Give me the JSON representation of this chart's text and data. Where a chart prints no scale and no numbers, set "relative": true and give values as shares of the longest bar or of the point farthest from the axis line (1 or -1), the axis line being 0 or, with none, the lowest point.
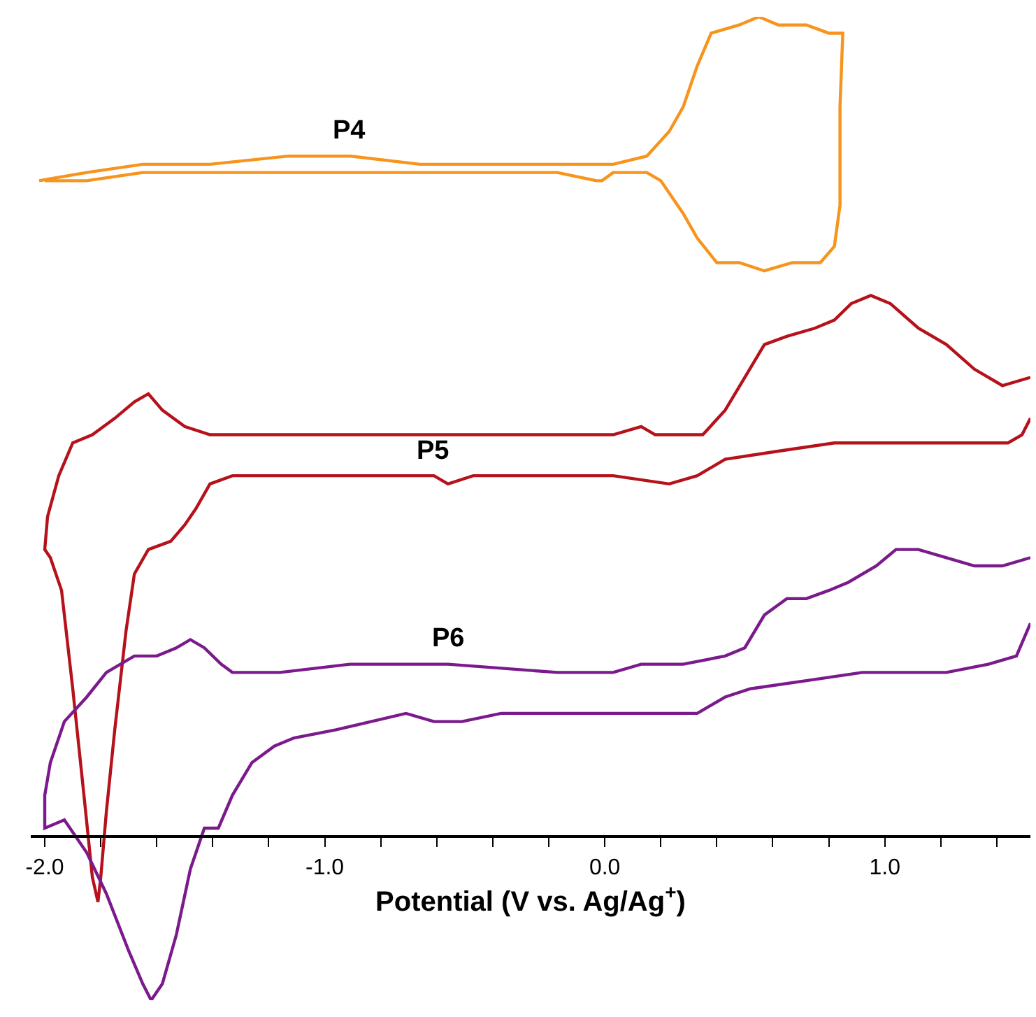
{
  "chart_data": {
    "type": "line",
    "relative": true,
    "xlabel": "Potential (V vs. Ag/Ag$^{+}$)",
    "xlim": [
      -2.05,
      1.52
    ],
    "xticks": [
      {
        "value": -2.0,
        "label": "-2.0"
      },
      {
        "value": -1.8,
        "label": null
      },
      {
        "value": -1.6,
        "label": null
      },
      {
        "value": -1.4,
        "label": null
      },
      {
        "value": -1.2,
        "label": null
      },
      {
        "value": -1.0,
        "label": "-1.0"
      },
      {
        "value": -0.8,
        "label": null
      },
      {
        "value": -0.6,
        "label": null
      },
      {
        "value": -0.4,
        "label": null
      },
      {
        "value": -0.2,
        "label": null
      },
      {
        "value": 0.0,
        "label": "0.0"
      },
      {
        "value": 0.2,
        "label": null
      },
      {
        "value": 0.4,
        "label": null
      },
      {
        "value": 0.6,
        "label": null
      },
      {
        "value": 0.8,
        "label": null
      },
      {
        "value": 1.0,
        "label": "1.0"
      },
      {
        "value": 1.2,
        "label": null
      },
      {
        "value": 1.4,
        "label": null
      }
    ],
    "legend": false,
    "marker": "none",
    "line_style": "solid",
    "series": [
      {
        "name": "P4",
        "color": "#f7941d",
        "x": [
          -2.02,
          -1.85,
          -1.65,
          -1.41,
          -1.13,
          -0.91,
          -0.66,
          -0.42,
          -0.17,
          0.03,
          0.15,
          0.23,
          0.28,
          0.33,
          0.38,
          0.48,
          0.55,
          0.62,
          0.72,
          0.8,
          0.82,
          0.85,
          0.84,
          0.84,
          0.82,
          0.77,
          0.67,
          0.57,
          0.48,
          0.4,
          0.33,
          0.28,
          0.2,
          0.15,
          0.1,
          0.03,
          -0.01,
          -0.03,
          -0.17,
          -0.66,
          -1.16,
          -1.41,
          -1.65,
          -1.85,
          -2.0
        ],
        "values": [
          0.8,
          0.81,
          0.82,
          0.82,
          0.83,
          0.83,
          0.82,
          0.82,
          0.82,
          0.82,
          0.83,
          0.86,
          0.89,
          0.94,
          0.98,
          0.99,
          1.0,
          0.99,
          0.99,
          0.98,
          0.98,
          0.98,
          0.89,
          0.77,
          0.72,
          0.7,
          0.7,
          0.69,
          0.7,
          0.7,
          0.73,
          0.76,
          0.8,
          0.81,
          0.81,
          0.81,
          0.8,
          0.8,
          0.81,
          0.81,
          0.81,
          0.81,
          0.81,
          0.8,
          0.8
        ]
      },
      {
        "name": "P5",
        "color": "#b5121b",
        "x": [
          1.52,
          1.42,
          1.32,
          1.22,
          1.12,
          1.02,
          0.95,
          0.88,
          0.82,
          0.75,
          0.65,
          0.57,
          0.5,
          0.43,
          0.35,
          0.28,
          0.18,
          0.13,
          0.03,
          -0.17,
          -0.66,
          -0.91,
          -1.01,
          -1.16,
          -1.41,
          -1.5,
          -1.58,
          -1.63,
          -1.68,
          -1.75,
          -1.83,
          -1.9,
          -1.95,
          -1.99,
          -2.0,
          -1.98,
          -1.94,
          -1.9,
          -1.86,
          -1.83,
          -1.81,
          -1.8,
          -1.78,
          -1.75,
          -1.71,
          -1.68,
          -1.63,
          -1.55,
          -1.5,
          -1.46,
          -1.41,
          -1.33,
          -1.16,
          -0.91,
          -0.76,
          -0.61,
          -0.56,
          -0.47,
          -0.17,
          0.03,
          0.23,
          0.33,
          0.43,
          0.62,
          0.82,
          1.32,
          1.44,
          1.49,
          1.52
        ],
        "values": [
          0.56,
          0.55,
          0.57,
          0.6,
          0.62,
          0.65,
          0.66,
          0.65,
          0.63,
          0.62,
          0.61,
          0.6,
          0.56,
          0.52,
          0.49,
          0.49,
          0.49,
          0.5,
          0.49,
          0.49,
          0.49,
          0.49,
          0.49,
          0.49,
          0.49,
          0.5,
          0.52,
          0.54,
          0.53,
          0.51,
          0.49,
          0.48,
          0.44,
          0.39,
          0.35,
          0.34,
          0.3,
          0.18,
          0.05,
          -0.05,
          -0.08,
          -0.05,
          0.03,
          0.13,
          0.25,
          0.32,
          0.35,
          0.36,
          0.38,
          0.4,
          0.43,
          0.44,
          0.44,
          0.44,
          0.44,
          0.44,
          0.43,
          0.44,
          0.44,
          0.44,
          0.43,
          0.44,
          0.46,
          0.47,
          0.48,
          0.48,
          0.48,
          0.49,
          0.51
        ]
      },
      {
        "name": "P6",
        "color": "#7b1a8c",
        "x": [
          1.52,
          1.42,
          1.32,
          1.22,
          1.12,
          1.04,
          0.97,
          0.87,
          0.8,
          0.72,
          0.65,
          0.57,
          0.5,
          0.43,
          0.28,
          0.13,
          0.03,
          -0.17,
          -0.56,
          -0.66,
          -0.91,
          -1.16,
          -1.33,
          -1.37,
          -1.43,
          -1.48,
          -1.53,
          -1.6,
          -1.68,
          -1.78,
          -1.85,
          -1.93,
          -1.98,
          -2.0,
          -2.0,
          -1.93,
          -1.85,
          -1.78,
          -1.7,
          -1.65,
          -1.62,
          -1.58,
          -1.53,
          -1.48,
          -1.43,
          -1.38,
          -1.33,
          -1.26,
          -1.18,
          -1.11,
          -0.96,
          -0.71,
          -0.61,
          -0.51,
          -0.37,
          -0.17,
          0.03,
          0.23,
          0.33,
          0.43,
          0.52,
          0.72,
          0.92,
          1.22,
          1.37,
          1.47,
          1.52
        ],
        "values": [
          0.34,
          0.33,
          0.33,
          0.34,
          0.35,
          0.35,
          0.33,
          0.31,
          0.3,
          0.29,
          0.29,
          0.27,
          0.23,
          0.22,
          0.21,
          0.21,
          0.2,
          0.2,
          0.21,
          0.21,
          0.21,
          0.2,
          0.2,
          0.21,
          0.23,
          0.24,
          0.23,
          0.22,
          0.22,
          0.2,
          0.17,
          0.14,
          0.09,
          0.05,
          0.01,
          0.02,
          -0.02,
          -0.07,
          -0.14,
          -0.18,
          -0.2,
          -0.18,
          -0.12,
          -0.04,
          0.01,
          0.01,
          0.05,
          0.09,
          0.11,
          0.12,
          0.13,
          0.15,
          0.14,
          0.14,
          0.15,
          0.15,
          0.15,
          0.15,
          0.15,
          0.17,
          0.18,
          0.19,
          0.2,
          0.2,
          0.21,
          0.22,
          0.26
        ]
      }
    ]
  }
}
